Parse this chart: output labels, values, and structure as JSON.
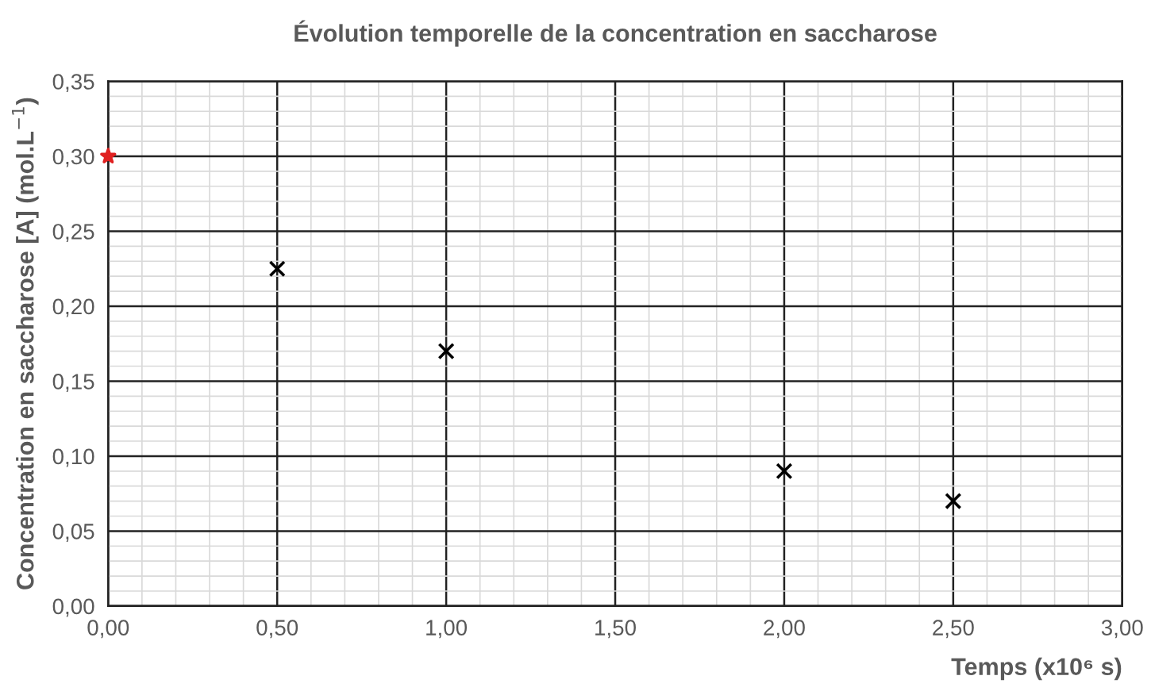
{
  "chart_data": {
    "type": "scatter",
    "title": "Évolution temporelle de la concentration en saccharose",
    "xlabel": "Temps (x10⁶ s)",
    "ylabel": "Concentration en saccharose [A] (mol.L$^{−1}$)",
    "series": [
      {
        "x": [
          0
        ],
        "values": [
          0.3
        ],
        "color": "#e02020",
        "marker": "star"
      },
      {
        "x": [
          0.5,
          1.0,
          2.0,
          2.5
        ],
        "values": [
          0.225,
          0.17,
          0.09,
          0.07
        ],
        "color": "#000000",
        "marker": "cross"
      }
    ],
    "xlim": [
      0,
      3
    ],
    "ylim": [
      0,
      0.35
    ],
    "xticks": [
      {
        "value": 0,
        "label": "0,00"
      },
      {
        "value": 0.5,
        "label": "0,50"
      },
      {
        "value": 1.0,
        "label": "1,00"
      },
      {
        "value": 1.5,
        "label": "1,50"
      },
      {
        "value": 2.0,
        "label": "2,00"
      },
      {
        "value": 2.5,
        "label": "2,50"
      },
      {
        "value": 3.0,
        "label": "3,00"
      }
    ],
    "yticks": [
      {
        "value": 0,
        "label": "0,00"
      },
      {
        "value": 0.05,
        "label": "0,05"
      },
      {
        "value": 0.1,
        "label": "0,10"
      },
      {
        "value": 0.15,
        "label": "0,15"
      },
      {
        "value": 0.2,
        "label": "0,20"
      },
      {
        "value": 0.25,
        "label": "0,25"
      },
      {
        "value": 0.3,
        "label": "0,30"
      },
      {
        "value": 0.35,
        "label": "0,35"
      }
    ],
    "grid": true,
    "legend": false
  }
}
